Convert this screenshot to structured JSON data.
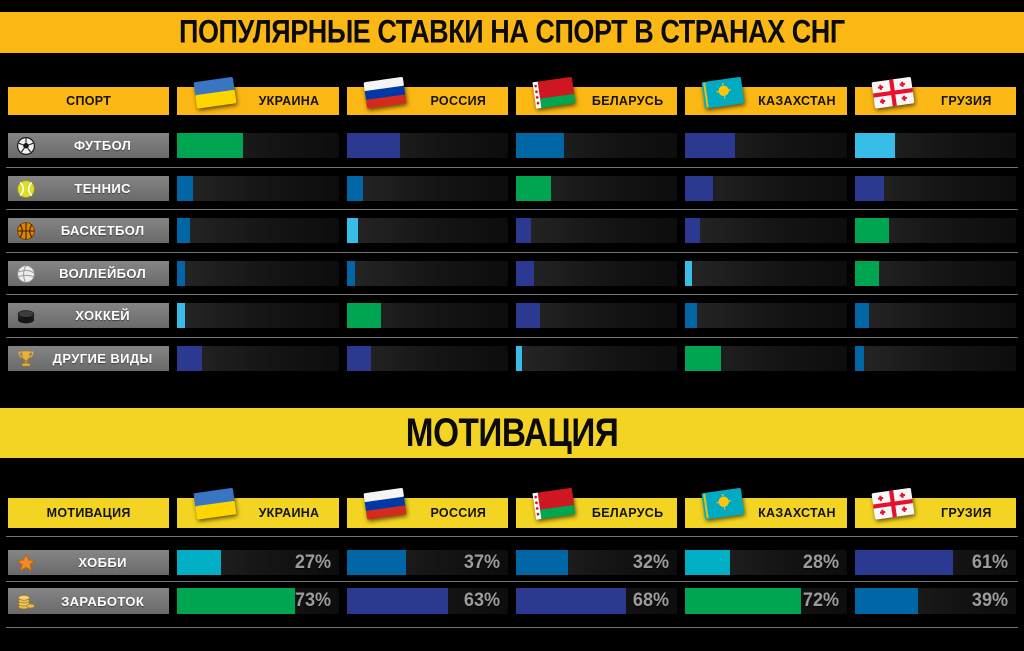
{
  "colors": {
    "green": "#00A551",
    "navy": "#2B3A90",
    "blue": "#0066A6",
    "cyan": "#38BCE8",
    "teal": "#00AEC6"
  },
  "section1": {
    "title": "ПОПУЛЯРНЫЕ СТАВКИ НА СПОРТ В СТРАНАХ СНГ",
    "header_label": "СПОРТ",
    "countries": [
      "УКРАИНА",
      "РОССИЯ",
      "БЕЛАРУСЬ",
      "КАЗАХСТАН",
      "ГРУЗИЯ"
    ],
    "rows": [
      {
        "label": "ФУТБОЛ",
        "icon": "soccer-ball-icon",
        "bars": [
          {
            "country": "УКРАИНА",
            "color": "green",
            "value_pct": 41
          },
          {
            "country": "РОССИЯ",
            "color": "navy",
            "value_pct": 33
          },
          {
            "country": "БЕЛАРУСЬ",
            "color": "blue",
            "value_pct": 30
          },
          {
            "country": "КАЗАХСТАН",
            "color": "navy",
            "value_pct": 31
          },
          {
            "country": "ГРУЗИЯ",
            "color": "cyan",
            "value_pct": 25
          }
        ]
      },
      {
        "label": "ТЕННИС",
        "icon": "tennis-ball-icon",
        "bars": [
          {
            "country": "УКРАИНА",
            "color": "blue",
            "value_pct": 10
          },
          {
            "country": "РОССИЯ",
            "color": "blue",
            "value_pct": 10
          },
          {
            "country": "БЕЛАРУСЬ",
            "color": "green",
            "value_pct": 22
          },
          {
            "country": "КАЗАХСТАН",
            "color": "navy",
            "value_pct": 17
          },
          {
            "country": "ГРУЗИЯ",
            "color": "navy",
            "value_pct": 18
          }
        ]
      },
      {
        "label": "БАСКЕТБОЛ",
        "icon": "basketball-icon",
        "bars": [
          {
            "country": "УКРАИНА",
            "color": "blue",
            "value_pct": 8
          },
          {
            "country": "РОССИЯ",
            "color": "cyan",
            "value_pct": 7
          },
          {
            "country": "БЕЛАРУСЬ",
            "color": "navy",
            "value_pct": 9
          },
          {
            "country": "КАЗАХСТАН",
            "color": "navy",
            "value_pct": 9
          },
          {
            "country": "ГРУЗИЯ",
            "color": "green",
            "value_pct": 21
          }
        ]
      },
      {
        "label": "ВОЛЛЕЙБОЛ",
        "icon": "volleyball-icon",
        "bars": [
          {
            "country": "УКРАИНА",
            "color": "blue",
            "value_pct": 5
          },
          {
            "country": "РОССИЯ",
            "color": "blue",
            "value_pct": 5
          },
          {
            "country": "БЕЛАРУСЬ",
            "color": "navy",
            "value_pct": 11
          },
          {
            "country": "КАЗАХСТАН",
            "color": "cyan",
            "value_pct": 4
          },
          {
            "country": "ГРУЗИЯ",
            "color": "green",
            "value_pct": 15
          }
        ]
      },
      {
        "label": "ХОККЕЙ",
        "icon": "hockey-puck-icon",
        "bars": [
          {
            "country": "УКРАИНА",
            "color": "cyan",
            "value_pct": 5
          },
          {
            "country": "РОССИЯ",
            "color": "green",
            "value_pct": 21
          },
          {
            "country": "БЕЛАРУСЬ",
            "color": "navy",
            "value_pct": 15
          },
          {
            "country": "КАЗАХСТАН",
            "color": "blue",
            "value_pct": 7
          },
          {
            "country": "ГРУЗИЯ",
            "color": "blue",
            "value_pct": 9
          }
        ]
      },
      {
        "label": "ДРУГИЕ ВИДЫ",
        "icon": "trophy-icon",
        "bars": [
          {
            "country": "УКРАИНА",
            "color": "navy",
            "value_pct": 15
          },
          {
            "country": "РОССИЯ",
            "color": "navy",
            "value_pct": 15
          },
          {
            "country": "БЕЛАРУСЬ",
            "color": "cyan",
            "value_pct": 4
          },
          {
            "country": "КАЗАХСТАН",
            "color": "green",
            "value_pct": 22
          },
          {
            "country": "ГРУЗИЯ",
            "color": "blue",
            "value_pct": 6
          }
        ]
      }
    ]
  },
  "section2": {
    "title": "МОТИВАЦИЯ",
    "header_label": "МОТИВАЦИЯ",
    "countries": [
      "УКРАИНА",
      "РОССИЯ",
      "БЕЛАРУСЬ",
      "КАЗАХСТАН",
      "ГРУЗИЯ"
    ],
    "rows": [
      {
        "label": "ХОББИ",
        "icon": "star-icon",
        "bars": [
          {
            "country": "УКРАИНА",
            "color": "teal",
            "value_pct": 27,
            "text": "27%"
          },
          {
            "country": "РОССИЯ",
            "color": "blue",
            "value_pct": 37,
            "text": "37%"
          },
          {
            "country": "БЕЛАРУСЬ",
            "color": "blue",
            "value_pct": 32,
            "text": "32%"
          },
          {
            "country": "КАЗАХСТАН",
            "color": "teal",
            "value_pct": 28,
            "text": "28%"
          },
          {
            "country": "ГРУЗИЯ",
            "color": "navy",
            "value_pct": 61,
            "text": "61%"
          }
        ]
      },
      {
        "label": "ЗАРАБОТОК",
        "icon": "coins-icon",
        "bars": [
          {
            "country": "УКРАИНА",
            "color": "green",
            "value_pct": 73,
            "text": "73%"
          },
          {
            "country": "РОССИЯ",
            "color": "navy",
            "value_pct": 63,
            "text": "63%"
          },
          {
            "country": "БЕЛАРУСЬ",
            "color": "navy",
            "value_pct": 68,
            "text": "68%"
          },
          {
            "country": "КАЗАХСТАН",
            "color": "green",
            "value_pct": 72,
            "text": "72%"
          },
          {
            "country": "ГРУЗИЯ",
            "color": "blue",
            "value_pct": 39,
            "text": "39%"
          }
        ]
      }
    ]
  },
  "chart_data": [
    {
      "type": "bar",
      "title": "ПОПУЛЯРНЫЕ СТАВКИ НА СПОРТ В СТРАНАХ СНГ",
      "categories": [
        "ФУТБОЛ",
        "ТЕННИС",
        "БАСКЕТБОЛ",
        "ВОЛЛЕЙБОЛ",
        "ХОККЕЙ",
        "ДРУГИЕ ВИДЫ"
      ],
      "series": [
        {
          "name": "УКРАИНА",
          "values": [
            41,
            10,
            8,
            5,
            5,
            15
          ]
        },
        {
          "name": "РОССИЯ",
          "values": [
            33,
            10,
            7,
            5,
            21,
            15
          ]
        },
        {
          "name": "БЕЛАРУСЬ",
          "values": [
            30,
            22,
            9,
            11,
            15,
            4
          ]
        },
        {
          "name": "КАЗАХСТАН",
          "values": [
            31,
            17,
            9,
            4,
            7,
            22
          ]
        },
        {
          "name": "ГРУЗИЯ",
          "values": [
            25,
            18,
            21,
            15,
            9,
            6
          ]
        }
      ],
      "xlabel": "СПОРТ",
      "ylabel": "",
      "ylim": [
        0,
        100
      ],
      "note": "horizontal bars per country column; numeric labels not shown, values estimated as % of track width"
    },
    {
      "type": "bar",
      "title": "МОТИВАЦИЯ",
      "categories": [
        "ХОББИ",
        "ЗАРАБОТОК"
      ],
      "series": [
        {
          "name": "УКРАИНА",
          "values": [
            27,
            73
          ]
        },
        {
          "name": "РОССИЯ",
          "values": [
            37,
            63
          ]
        },
        {
          "name": "БЕЛАРУСЬ",
          "values": [
            32,
            68
          ]
        },
        {
          "name": "КАЗАХСТАН",
          "values": [
            28,
            72
          ]
        },
        {
          "name": "ГРУЗИЯ",
          "values": [
            61,
            39
          ]
        }
      ],
      "xlabel": "МОТИВАЦИЯ",
      "ylabel": "",
      "ylim": [
        0,
        100
      ],
      "value_format": "percent"
    }
  ]
}
